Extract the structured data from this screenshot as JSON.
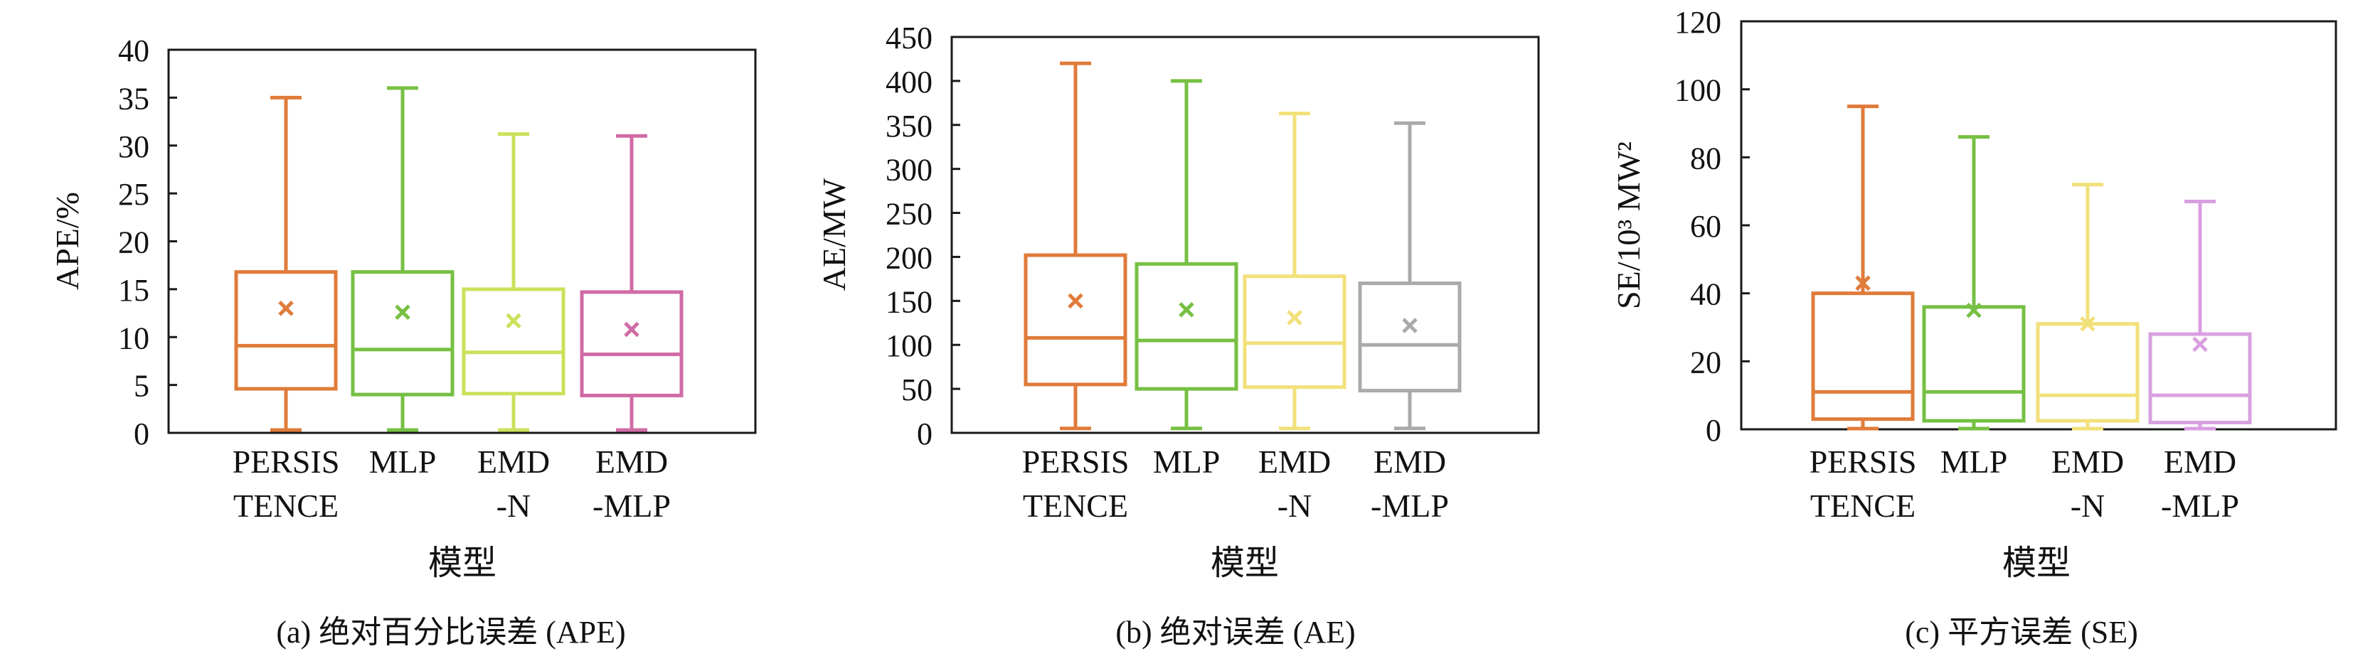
{
  "chart_data": [
    {
      "type": "box",
      "panel_caption": "(a) 绝对百分比误差 (APE)",
      "xlabel": "模型",
      "ylabel": "APE/%",
      "ylim": [
        0,
        40
      ],
      "yticks": [
        0,
        5,
        10,
        15,
        20,
        25,
        30,
        35,
        40
      ],
      "categories": [
        [
          "PERSIS",
          "TENCE"
        ],
        [
          "MLP",
          ""
        ],
        [
          "EMD",
          "-N"
        ],
        [
          "EMD",
          "-MLP"
        ]
      ],
      "series": [
        {
          "color": "#e07b39",
          "whisker_low": 0.3,
          "q1": 4.6,
          "median": 9.1,
          "q3": 16.8,
          "whisker_high": 35,
          "mean": 13.0
        },
        {
          "color": "#76c043",
          "whisker_low": 0.3,
          "q1": 4.0,
          "median": 8.7,
          "q3": 16.8,
          "whisker_high": 36,
          "mean": 12.6
        },
        {
          "color": "#cde05a",
          "whisker_low": 0.3,
          "q1": 4.1,
          "median": 8.4,
          "q3": 15.0,
          "whisker_high": 31.2,
          "mean": 11.7
        },
        {
          "color": "#d16ba5",
          "whisker_low": 0.3,
          "q1": 3.9,
          "median": 8.2,
          "q3": 14.7,
          "whisker_high": 31,
          "mean": 10.8
        }
      ]
    },
    {
      "type": "box",
      "panel_caption": "(b) 绝对误差 (AE)",
      "xlabel": "模型",
      "ylabel": "AE/MW",
      "ylim": [
        0,
        450
      ],
      "yticks": [
        0,
        50,
        100,
        150,
        200,
        250,
        300,
        350,
        400,
        450
      ],
      "categories": [
        [
          "PERSIS",
          "TENCE"
        ],
        [
          "MLP",
          ""
        ],
        [
          "EMD",
          "-N"
        ],
        [
          "EMD",
          "-MLP"
        ]
      ],
      "series": [
        {
          "color": "#e07b39",
          "whisker_low": 5,
          "q1": 55,
          "median": 108,
          "q3": 202,
          "whisker_high": 420,
          "mean": 150
        },
        {
          "color": "#76c043",
          "whisker_low": 5,
          "q1": 50,
          "median": 105,
          "q3": 192,
          "whisker_high": 400,
          "mean": 140
        },
        {
          "color": "#f2e07a",
          "whisker_low": 5,
          "q1": 52,
          "median": 102,
          "q3": 178,
          "whisker_high": 363,
          "mean": 131
        },
        {
          "color": "#aaaaaa",
          "whisker_low": 5,
          "q1": 48,
          "median": 100,
          "q3": 170,
          "whisker_high": 352,
          "mean": 122
        }
      ]
    },
    {
      "type": "box",
      "panel_caption": "(c) 平方误差 (SE)",
      "xlabel": "模型",
      "ylabel": "SE/10³ MW²",
      "ylim": [
        0,
        120
      ],
      "yticks": [
        0,
        20,
        40,
        60,
        80,
        100,
        120
      ],
      "categories": [
        [
          "PERSIS",
          "TENCE"
        ],
        [
          "MLP",
          ""
        ],
        [
          "EMD",
          "-N"
        ],
        [
          "EMD",
          "-MLP"
        ]
      ],
      "series": [
        {
          "color": "#e07b39",
          "whisker_low": 0.2,
          "q1": 3,
          "median": 11,
          "q3": 40,
          "whisker_high": 95,
          "mean": 43
        },
        {
          "color": "#76c043",
          "whisker_low": 0.2,
          "q1": 2.5,
          "median": 11,
          "q3": 36,
          "whisker_high": 86,
          "mean": 35
        },
        {
          "color": "#f2e07a",
          "whisker_low": 0.2,
          "q1": 2.5,
          "median": 10,
          "q3": 31,
          "whisker_high": 72,
          "mean": 31
        },
        {
          "color": "#d9a0e0",
          "whisker_low": 0.2,
          "q1": 2,
          "median": 10,
          "q3": 28,
          "whisker_high": 67,
          "mean": 25
        }
      ]
    }
  ]
}
